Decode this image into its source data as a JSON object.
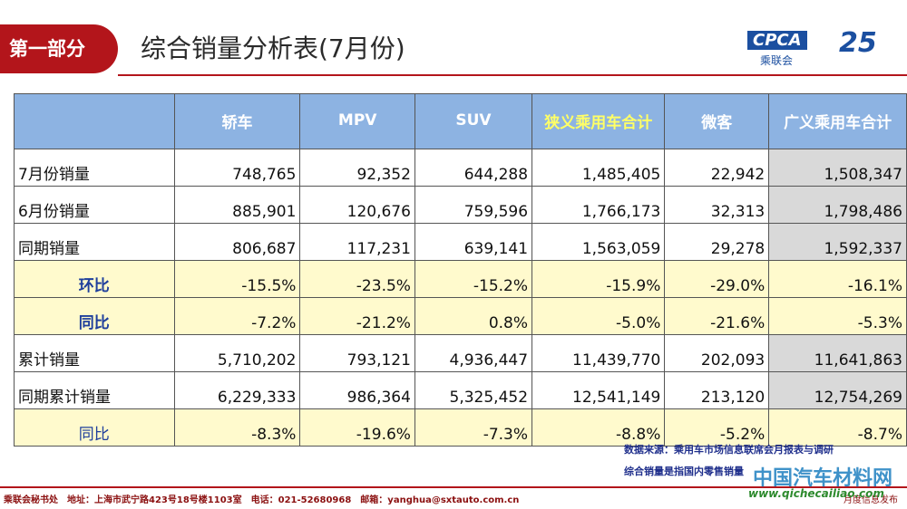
{
  "header": {
    "section": "第一部分",
    "title": "综合销量分析表(7月份)",
    "logo": "CPCA",
    "logo_sub": "乘联会",
    "anniversary": "25"
  },
  "table": {
    "columns": [
      "",
      "轿车",
      "MPV",
      "SUV",
      "狭义乘用车合计",
      "微客",
      "广义乘用车合计"
    ],
    "rows": [
      [
        "7月份销量",
        "748,765",
        "92,352",
        "644,288",
        "1,485,405",
        "22,942",
        "1,508,347"
      ],
      [
        "6月份销量",
        "885,901",
        "120,676",
        "759,596",
        "1,766,173",
        "32,313",
        "1,798,486"
      ],
      [
        "同期销量",
        "806,687",
        "117,231",
        "639,141",
        "1,563,059",
        "29,278",
        "1,592,337"
      ],
      [
        "环比",
        "-15.5%",
        "-23.5%",
        "-15.2%",
        "-15.9%",
        "-29.0%",
        "-16.1%"
      ],
      [
        "同比",
        "-7.2%",
        "-21.2%",
        "0.8%",
        "-5.0%",
        "-21.6%",
        "-5.3%"
      ],
      [
        "累计销量",
        "5,710,202",
        "793,121",
        "4,936,447",
        "11,439,770",
        "202,093",
        "11,641,863"
      ],
      [
        "同期累计销量",
        "6,229,333",
        "986,364",
        "5,325,452",
        "12,541,149",
        "213,120",
        "12,754,269"
      ],
      [
        "同比",
        "-8.3%",
        "-19.6%",
        "-7.3%",
        "-8.8%",
        "-5.2%",
        "-8.7%"
      ]
    ]
  },
  "notes": [
    "数据来源：乘用车市场信息联席会月报表与调研",
    "综合销量是指国内零售销量"
  ],
  "footer": {
    "address": "乘联会秘书处　地址：上海市武宁路423号18号楼1103室　电话：021-52680968　邮箱：yanghua@sxtauto.com.cn",
    "right": "月度信息发布"
  },
  "watermark": {
    "name": "中国汽车材料网",
    "url": "www.qichecailiao.com"
  }
}
